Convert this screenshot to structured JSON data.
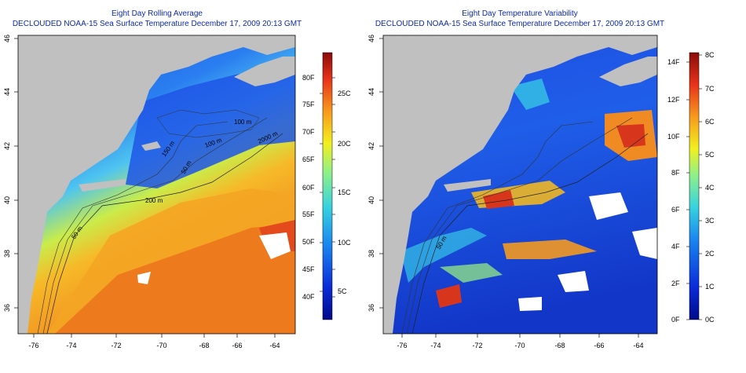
{
  "left_panel": {
    "title": "Eight Day Rolling Average",
    "subtitle": "DECLOUDED NOAA-15 Sea Surface Temperature December 17, 2009 20:13 GMT",
    "x_ticks": [
      "-76",
      "-74",
      "-72",
      "-70",
      "-68",
      "-66",
      "-64"
    ],
    "y_ticks": [
      "36",
      "38",
      "40",
      "42",
      "44",
      "46"
    ],
    "colorbar_f": [
      "80F",
      "75F",
      "70F",
      "65F",
      "60F",
      "55F",
      "50F",
      "45F",
      "40F"
    ],
    "colorbar_c": [
      "25C",
      "20C",
      "15C",
      "10C",
      "5C"
    ],
    "isobath_labels": [
      "200 m",
      "100 m",
      "50 m",
      "50 m",
      "2000 m",
      "100 m",
      "150 m"
    ]
  },
  "right_panel": {
    "title": "Eight Day Temperature Variability",
    "subtitle": "DECLOUDED NOAA-15 Sea Surface Temperature December 17, 2009 20:13 GMT",
    "x_ticks": [
      "-76",
      "-74",
      "-72",
      "-70",
      "-68",
      "-66",
      "-64"
    ],
    "y_ticks": [
      "36",
      "38",
      "40",
      "42",
      "44",
      "46"
    ],
    "colorbar_f": [
      "14F",
      "12F",
      "10F",
      "8F",
      "6F",
      "4F",
      "2F",
      "0F"
    ],
    "colorbar_c": [
      "8C",
      "7C",
      "6C",
      "5C",
      "4C",
      "3C",
      "2C",
      "1C",
      "0C"
    ],
    "isobath_labels": [
      "50 m"
    ]
  },
  "colors": {
    "title": "#0b2aa8",
    "land": "#c0c0c0",
    "cold": "#1a3fd6",
    "warm": "#f07a20"
  }
}
